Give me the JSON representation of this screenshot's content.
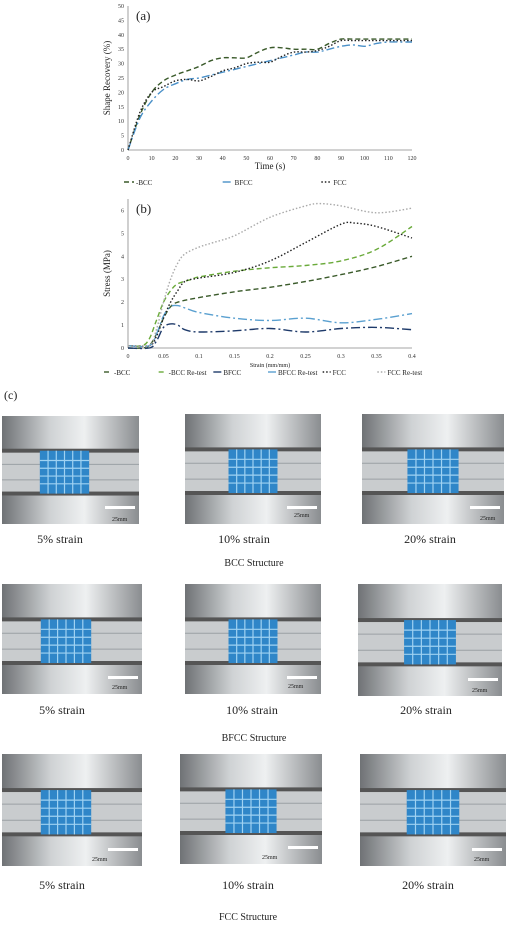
{
  "charts": {
    "a": {
      "panel_label": "(a)",
      "chart_data": {
        "type": "line",
        "xlabel": "Time (s)",
        "ylabel": "Shape Recovery (%)",
        "xlim": [
          0,
          120
        ],
        "ylim": [
          0,
          50
        ],
        "xticks": [
          0,
          10,
          20,
          30,
          40,
          50,
          60,
          70,
          80,
          90,
          100,
          110,
          120
        ],
        "yticks": [
          0,
          5,
          10,
          15,
          20,
          25,
          30,
          35,
          40,
          45,
          50
        ],
        "legend_position": "bottom",
        "grid": false,
        "series": [
          {
            "name": "-BCC",
            "color": "#3a5a2a",
            "dash": "5,3",
            "x": [
              0,
              5,
              10,
              15,
              20,
              25,
              30,
              35,
              40,
              45,
              50,
              55,
              60,
              65,
              70,
              75,
              80,
              85,
              90,
              95,
              100,
              105,
              110,
              115,
              120
            ],
            "y": [
              0,
              12,
              20,
              24,
              26,
              27.5,
              29,
              31,
              32,
              32,
              32,
              34,
              35.5,
              35.5,
              35,
              35,
              35,
              37,
              38.5,
              38.5,
              38.5,
              38.5,
              38.5,
              38.5,
              38.5
            ]
          },
          {
            "name": "BFCC",
            "color": "#4a90c8",
            "dash": "8,3,2,3",
            "x": [
              0,
              5,
              10,
              15,
              20,
              25,
              30,
              35,
              40,
              45,
              50,
              55,
              60,
              65,
              70,
              75,
              80,
              85,
              90,
              95,
              100,
              105,
              110,
              115,
              120
            ],
            "y": [
              0,
              11,
              17,
              21,
              23,
              24.5,
              25,
              26,
              27,
              28,
              29,
              30,
              31,
              32,
              33,
              34,
              34,
              35,
              36,
              36.5,
              36,
              37,
              37.5,
              37.5,
              37.5
            ]
          },
          {
            "name": "FCC",
            "color": "#222222",
            "dash": "1.5,2",
            "x": [
              0,
              5,
              10,
              15,
              20,
              25,
              30,
              35,
              40,
              45,
              50,
              55,
              60,
              65,
              70,
              75,
              80,
              85,
              90,
              95,
              100,
              105,
              110,
              115,
              120
            ],
            "y": [
              0,
              13,
              20,
              22,
              24,
              24.5,
              24,
              25.5,
              27.5,
              28.5,
              30,
              30.5,
              30.5,
              32.5,
              34,
              34,
              34.5,
              36,
              38,
              38,
              38,
              38,
              38,
              38,
              38
            ]
          }
        ]
      }
    },
    "b": {
      "panel_label": "(b)",
      "chart_data": {
        "type": "line",
        "xlabel": "Strain (mm/mm)",
        "ylabel": "Stress (MPa)",
        "xlim": [
          0,
          0.4
        ],
        "ylim": [
          0,
          6.5
        ],
        "xticks": [
          "0",
          "0.05",
          "0.1",
          "0.15",
          "0.2",
          "0.25",
          "0.3",
          "0.35",
          "0.4"
        ],
        "yticks": [
          0,
          1,
          2,
          3,
          4,
          5,
          6
        ],
        "legend_position": "bottom",
        "grid": false,
        "series": [
          {
            "name": "-BCC",
            "color": "#3a5a2a",
            "dash": "5,3",
            "x": [
              0,
              0.02,
              0.03,
              0.04,
              0.05,
              0.06,
              0.07,
              0.1,
              0.15,
              0.2,
              0.25,
              0.3,
              0.35,
              0.4
            ],
            "y": [
              0,
              0,
              0.1,
              0.6,
              1.3,
              1.8,
              2.0,
              2.2,
              2.45,
              2.65,
              2.9,
              3.2,
              3.55,
              4.0
            ]
          },
          {
            "name": "-BCC Re-test",
            "color": "#6aaa3a",
            "dash": "5,3",
            "x": [
              0,
              0.02,
              0.03,
              0.04,
              0.05,
              0.06,
              0.07,
              0.09,
              0.1,
              0.15,
              0.2,
              0.25,
              0.3,
              0.35,
              0.4
            ],
            "y": [
              0.1,
              0.1,
              0.4,
              1.2,
              2.0,
              2.5,
              2.8,
              3.0,
              3.1,
              3.35,
              3.5,
              3.6,
              3.8,
              4.3,
              5.3
            ]
          },
          {
            "name": "BFCC",
            "color": "#1e3a6a",
            "dash": "9,3,2,3",
            "x": [
              0,
              0.03,
              0.04,
              0.05,
              0.06,
              0.07,
              0.08,
              0.1,
              0.15,
              0.2,
              0.25,
              0.3,
              0.35,
              0.4
            ],
            "y": [
              0,
              0,
              0.3,
              0.9,
              1.05,
              1.0,
              0.8,
              0.7,
              0.75,
              0.85,
              0.7,
              0.85,
              0.9,
              0.8
            ]
          },
          {
            "name": "BFCC Re-test",
            "color": "#5aa0d0",
            "dash": "9,3,2,3",
            "x": [
              0,
              0.03,
              0.04,
              0.05,
              0.06,
              0.07,
              0.08,
              0.1,
              0.15,
              0.2,
              0.25,
              0.3,
              0.35,
              0.4
            ],
            "y": [
              0.1,
              0.1,
              0.6,
              1.4,
              1.8,
              1.85,
              1.75,
              1.55,
              1.3,
              1.2,
              1.3,
              1.1,
              1.25,
              1.5
            ]
          },
          {
            "name": "FCC",
            "color": "#222222",
            "dash": "1.5,2",
            "x": [
              0,
              0.03,
              0.04,
              0.05,
              0.06,
              0.07,
              0.08,
              0.1,
              0.15,
              0.2,
              0.25,
              0.3,
              0.32,
              0.35,
              0.4
            ],
            "y": [
              0.1,
              0.1,
              0.5,
              1.3,
              2.0,
              2.5,
              2.9,
              3.05,
              3.3,
              3.8,
              4.6,
              5.4,
              5.45,
              5.3,
              4.8
            ]
          },
          {
            "name": "FCC Re-test",
            "color": "#aaaaaa",
            "dash": "1.5,2",
            "x": [
              0,
              0.03,
              0.04,
              0.05,
              0.06,
              0.07,
              0.08,
              0.1,
              0.12,
              0.15,
              0.2,
              0.25,
              0.27,
              0.3,
              0.35,
              0.4
            ],
            "y": [
              0.1,
              0.1,
              0.8,
              2.0,
              3.0,
              3.7,
              4.1,
              4.4,
              4.6,
              4.9,
              5.7,
              6.2,
              6.3,
              6.2,
              5.9,
              6.1
            ]
          }
        ]
      }
    }
  },
  "panel_c": {
    "label": "(c)",
    "scale_text": "25mm",
    "rows": [
      {
        "structure": "BCC Structure",
        "captions": [
          "5% strain",
          "10% strain",
          "20% strain"
        ]
      },
      {
        "structure": "BFCC Structure",
        "captions": [
          "5% strain",
          "10% strain",
          "20% strain"
        ]
      },
      {
        "structure": "FCC Structure",
        "captions": [
          "5% strain",
          "10% strain",
          "20% strain"
        ]
      }
    ]
  }
}
